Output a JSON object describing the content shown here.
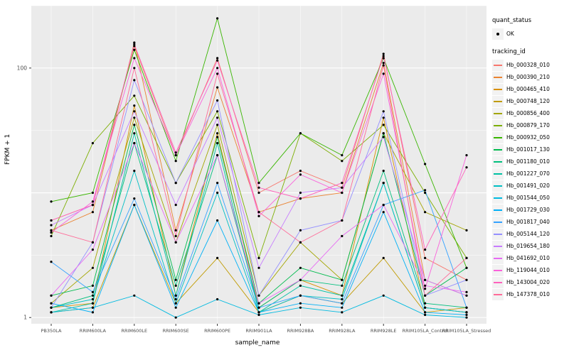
{
  "chart_data": {
    "type": "line",
    "title": "",
    "xlabel": "sample_name",
    "ylabel": "FPKM + 1",
    "y_scale": "log10",
    "ylim": [
      1,
      280
    ],
    "y_major_tick_labels": [
      "1",
      "100"
    ],
    "y_major_tick_values": [
      1,
      100
    ],
    "y_gridline_values": [
      1,
      10,
      100
    ],
    "y_minor_gridline_values": [
      3.162,
      31.62,
      316.2
    ],
    "grid_on": true,
    "legend_position": "right",
    "point_color": "#000000",
    "panel_bg": "#EBEBEB",
    "grid_color": "#FFFFFF",
    "categories": [
      "PB350LA",
      "RRIM600LA",
      "RRIM600LE",
      "RRIM600SE",
      "RRIM600PE",
      "RRIM901LA",
      "RRIM928BA",
      "RRIM928LA",
      "RRIM928LE",
      "RRIM105LA_Control",
      "RRIM105LA_Stressed"
    ],
    "series": [
      {
        "name": "Hb_000328_010",
        "color": "#F8766D",
        "values": [
          6,
          8,
          150,
          20,
          120,
          10,
          15,
          11,
          130,
          3,
          2
        ]
      },
      {
        "name": "Hb_000390_210",
        "color": "#EA8331",
        "values": [
          5,
          7,
          160,
          5,
          70,
          7,
          9,
          10,
          110,
          2,
          1.5
        ]
      },
      {
        "name": "Hb_000465_410",
        "color": "#D89000",
        "values": [
          1.2,
          1.3,
          50,
          1.5,
          30,
          1.2,
          2,
          1.5,
          40,
          1.2,
          1.1
        ]
      },
      {
        "name": "Hb_000748_120",
        "color": "#C09B00",
        "values": [
          1.1,
          1.2,
          8,
          1.3,
          3,
          1.1,
          1.5,
          1.3,
          3,
          1.1,
          1.2
        ]
      },
      {
        "name": "Hb_000856_400",
        "color": "#A3A500",
        "values": [
          1.3,
          2.5,
          40,
          4,
          35,
          1.5,
          4,
          2,
          30,
          7,
          5
        ]
      },
      {
        "name": "Hb_000879_170",
        "color": "#7CAE00",
        "values": [
          4.5,
          25,
          60,
          12,
          45,
          3,
          30,
          18,
          35,
          10,
          3
        ]
      },
      {
        "name": "Hb_000932_050",
        "color": "#39B600",
        "values": [
          8.5,
          10,
          140,
          18,
          250,
          12,
          30,
          20,
          120,
          17,
          2.5
        ]
      },
      {
        "name": "Hb_001017_130",
        "color": "#00BB4E",
        "values": [
          1.5,
          1.8,
          35,
          2,
          28,
          1.3,
          2.5,
          2,
          30,
          1.5,
          2.5
        ]
      },
      {
        "name": "Hb_001180_010",
        "color": "#00BF7D",
        "values": [
          1.2,
          1.5,
          25,
          1.8,
          20,
          1.2,
          2,
          1.8,
          15,
          1.3,
          1.2
        ]
      },
      {
        "name": "Hb_001227_070",
        "color": "#00C1A3",
        "values": [
          1.1,
          1.3,
          30,
          1.5,
          25,
          1.1,
          1.8,
          1.5,
          12,
          1.2,
          1.1
        ]
      },
      {
        "name": "Hb_001491_020",
        "color": "#00BFC4",
        "values": [
          1.2,
          1.4,
          15,
          1.3,
          10,
          1.1,
          1.5,
          1.4,
          12,
          1.2,
          1.1
        ]
      },
      {
        "name": "Hb_001544_050",
        "color": "#00BAE0",
        "values": [
          1.1,
          1.2,
          1.5,
          1.0,
          1.4,
          1.05,
          1.2,
          1.1,
          1.5,
          1.05,
          1.0
        ]
      },
      {
        "name": "Hb_001729_030",
        "color": "#00B0F6",
        "values": [
          1.3,
          1.1,
          8,
          1.2,
          6,
          1.1,
          1.3,
          1.2,
          7,
          1.1,
          1.05
        ]
      },
      {
        "name": "Hb_001817_040",
        "color": "#35A2FF",
        "values": [
          2.8,
          1.6,
          9,
          1.4,
          12,
          1.2,
          1.5,
          1.3,
          8,
          10.5,
          1.2
        ]
      },
      {
        "name": "Hb_005144_120",
        "color": "#9590FF",
        "values": [
          1.2,
          4,
          80,
          12,
          55,
          1.5,
          5,
          6,
          45,
          1.5,
          2
        ]
      },
      {
        "name": "Hb_019654_180",
        "color": "#C77CFF",
        "values": [
          5.5,
          8,
          45,
          8,
          40,
          2.5,
          10,
          11,
          28,
          2,
          1.5
        ]
      },
      {
        "name": "Hb_041692_010",
        "color": "#E76BF3",
        "values": [
          1.5,
          3.5,
          25,
          4,
          20,
          1.3,
          2,
          4.5,
          8,
          1.8,
          1.6
        ]
      },
      {
        "name": "Hb_119044_010",
        "color": "#FA62DB",
        "values": [
          4.8,
          8.5,
          120,
          20,
          100,
          6.5,
          14,
          10,
          90,
          1.7,
          20
        ]
      },
      {
        "name": "Hb_143004_020",
        "color": "#FF62BC",
        "values": [
          6,
          8,
          155,
          21,
          115,
          11,
          9,
          12,
          125,
          3.5,
          16
        ]
      },
      {
        "name": "Hb_147378_010",
        "color": "#FF6A98",
        "values": [
          5,
          4,
          100,
          4.5,
          90,
          7,
          4,
          6,
          105,
          1.5,
          3
        ]
      }
    ],
    "legend": {
      "quant_status_title": "quant_status",
      "quant_status_items": [
        {
          "label": "OK"
        }
      ],
      "tracking_title": "tracking_id"
    }
  }
}
